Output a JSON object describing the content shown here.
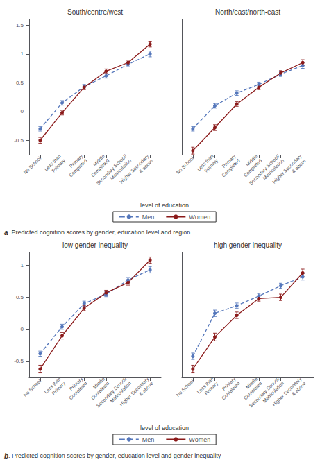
{
  "chart_data": [
    {
      "type": "line",
      "title": "South/centre/west",
      "categories": [
        "No School",
        "Less than\nPrimary",
        "Primary\nCompleted",
        "Middle\nCompleted",
        "Secondary School/\nMatriculation",
        "Higher Secondary\n& above"
      ],
      "series": [
        {
          "name": "Men",
          "color": "#5577BB",
          "line_style": "dashed",
          "marker": "circle",
          "values": [
            -0.3,
            0.15,
            0.43,
            0.62,
            0.82,
            1.0
          ],
          "errors": [
            0.04,
            0.04,
            0.04,
            0.04,
            0.04,
            0.05
          ]
        },
        {
          "name": "Women",
          "color": "#8B1A1A",
          "line_style": "solid",
          "marker": "circle",
          "values": [
            -0.5,
            -0.02,
            0.42,
            0.7,
            0.85,
            1.17
          ],
          "errors": [
            0.05,
            0.04,
            0.04,
            0.04,
            0.04,
            0.05
          ]
        }
      ],
      "ylim": [
        -0.75,
        1.6
      ],
      "yticks": [
        -0.5,
        0,
        0.5,
        1,
        1.5
      ],
      "grid": false,
      "xlabel": "level of education",
      "legend": "bottom",
      "annotations": [
        "a",
        ". Predicted cognition scores by gender, education level and region"
      ]
    },
    {
      "type": "line",
      "title": "North/east/north-east",
      "categories": [
        "No School",
        "Less than\nPrimary",
        "Primary\nCompleted",
        "Middle\nCompleted",
        "Secondary School/\nMatriculation",
        "Higher Secondary\n& above"
      ],
      "series": [
        {
          "name": "Men",
          "color": "#5577BB",
          "line_style": "dashed",
          "marker": "circle",
          "values": [
            -0.3,
            0.1,
            0.32,
            0.47,
            0.65,
            0.8
          ],
          "errors": [
            0.04,
            0.04,
            0.04,
            0.04,
            0.04,
            0.05
          ]
        },
        {
          "name": "Women",
          "color": "#8B1A1A",
          "line_style": "solid",
          "marker": "circle",
          "values": [
            -0.68,
            -0.28,
            0.13,
            0.42,
            0.67,
            0.85
          ],
          "errors": [
            0.06,
            0.05,
            0.04,
            0.04,
            0.04,
            0.05
          ]
        }
      ],
      "ylim": [
        -0.75,
        1.6
      ],
      "yticks": [
        -0.5,
        0,
        0.5,
        1,
        1.5
      ],
      "grid": false,
      "tick_labels": "x"
    },
    {
      "type": "line",
      "title": "low gender inequality",
      "categories": [
        "No School",
        "Less than\nPrimary",
        "Primary\nCompleted",
        "Middle\nCompleted",
        "Secondary School/\nMatriculation",
        "Higher Secondary\n& above"
      ],
      "series": [
        {
          "name": "Men",
          "color": "#5577BB",
          "line_style": "dashed",
          "marker": "circle",
          "values": [
            -0.38,
            0.04,
            0.4,
            0.55,
            0.77,
            0.93
          ],
          "errors": [
            0.04,
            0.04,
            0.04,
            0.04,
            0.04,
            0.05
          ]
        },
        {
          "name": "Women",
          "color": "#8B1A1A",
          "line_style": "solid",
          "marker": "circle",
          "values": [
            -0.62,
            -0.1,
            0.33,
            0.57,
            0.73,
            1.08
          ],
          "errors": [
            0.06,
            0.05,
            0.04,
            0.04,
            0.04,
            0.05
          ]
        }
      ],
      "ylim": [
        -0.75,
        1.2
      ],
      "yticks": [
        -0.5,
        0,
        0.5,
        1
      ],
      "grid": false,
      "xlabel": "level of education",
      "legend": "bottom",
      "annotations": [
        "b",
        ". Predicted cognition scores by gender, education level and gender inequality"
      ]
    },
    {
      "type": "line",
      "title": "high gender inequality",
      "categories": [
        "No School",
        "Less than\nPrimary",
        "Primary\nCompleted",
        "Middle\nCompleted",
        "Secondary School/\nMatriculation",
        "Higher Secondary\n& above"
      ],
      "series": [
        {
          "name": "Men",
          "color": "#5577BB",
          "line_style": "dashed",
          "marker": "circle",
          "values": [
            -0.42,
            0.25,
            0.37,
            0.52,
            0.68,
            0.82
          ],
          "errors": [
            0.05,
            0.05,
            0.04,
            0.04,
            0.04,
            0.05
          ]
        },
        {
          "name": "Women",
          "color": "#8B1A1A",
          "line_style": "solid",
          "marker": "circle",
          "values": [
            -0.62,
            -0.12,
            0.22,
            0.48,
            0.5,
            0.88
          ],
          "errors": [
            0.06,
            0.06,
            0.05,
            0.04,
            0.05,
            0.06
          ]
        }
      ],
      "ylim": [
        -0.75,
        1.2
      ],
      "yticks": [
        -0.5,
        0,
        0.5,
        1
      ],
      "grid": false,
      "tick_labels": "x"
    }
  ]
}
